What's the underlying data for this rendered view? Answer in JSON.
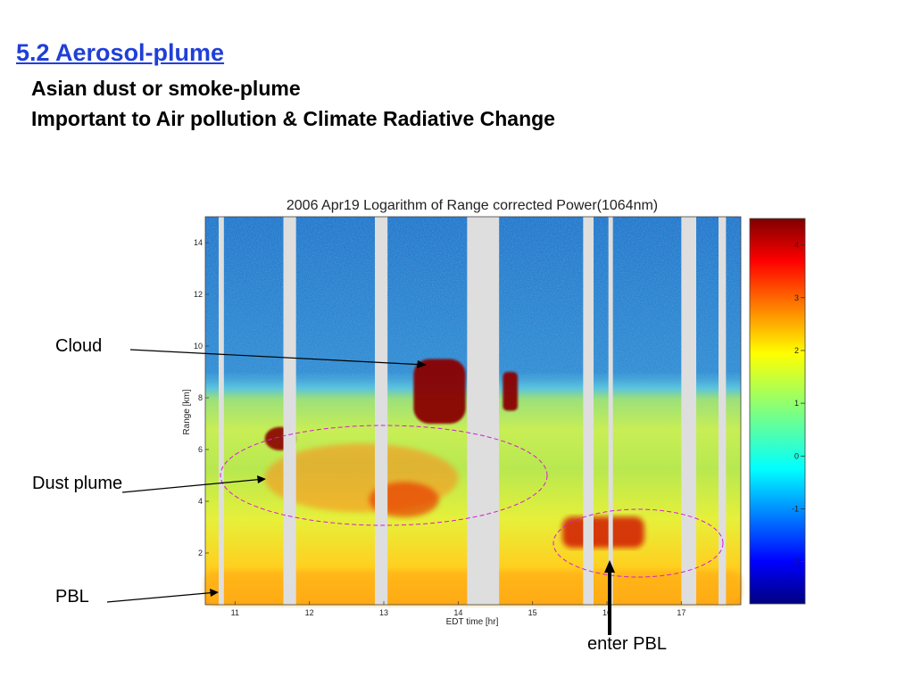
{
  "slide": {
    "title": "5.2 Aerosol-plume",
    "subtitle1": "Asian dust  or smoke-plume",
    "subtitle2": "Important to Air pollution & Climate Radiative Change"
  },
  "annotations": {
    "cloud": "Cloud",
    "dust_plume": "Dust plume",
    "pbl": "PBL",
    "enter_pbl": "enter PBL"
  },
  "colors": {
    "title_blue": "#1f3fd8",
    "ellipse": "#d020d0",
    "gap": "#dedede"
  },
  "chart_data": {
    "type": "heatmap",
    "title": "2006 Apr19  Logarithm of Range corrected Power(1064nm)",
    "xlabel": "EDT time [hr]",
    "ylabel": "Range [km]",
    "xlim": [
      10.6,
      17.8
    ],
    "ylim": [
      0,
      15
    ],
    "xticks": [
      "11",
      "12",
      "13",
      "14",
      "15",
      "16",
      "17"
    ],
    "yticks": [
      "2",
      "4",
      "6",
      "8",
      "10",
      "12",
      "14"
    ],
    "colorbar": {
      "range": [
        -2.8,
        4.5
      ],
      "ticks": [
        "-2",
        "-1",
        "0",
        "1",
        "2",
        "3",
        "4"
      ]
    },
    "data_gaps_hr": [
      [
        10.78,
        10.85
      ],
      [
        11.65,
        11.82
      ],
      [
        12.88,
        13.05
      ],
      [
        14.12,
        14.55
      ],
      [
        15.68,
        15.82
      ],
      [
        16.02,
        16.08
      ],
      [
        17.0,
        17.2
      ],
      [
        17.5,
        17.6
      ]
    ],
    "features": [
      {
        "label": "Cloud",
        "time_hr": [
          13.4,
          14.1
        ],
        "range_km": [
          7,
          9.5
        ]
      },
      {
        "label": "Cloud",
        "time_hr": [
          14.6,
          14.8
        ],
        "range_km": [
          7.5,
          9
        ]
      },
      {
        "label": "Dust plume",
        "time_hr": [
          11.4,
          14.0
        ],
        "range_km": [
          3,
          6.8
        ]
      },
      {
        "label": "PBL",
        "time_hr": [
          10.6,
          17.8
        ],
        "range_km": [
          0,
          1.3
        ]
      },
      {
        "label": "enter PBL",
        "time_hr": [
          15.4,
          16.5
        ],
        "range_km": [
          2.2,
          3.4
        ]
      }
    ]
  }
}
